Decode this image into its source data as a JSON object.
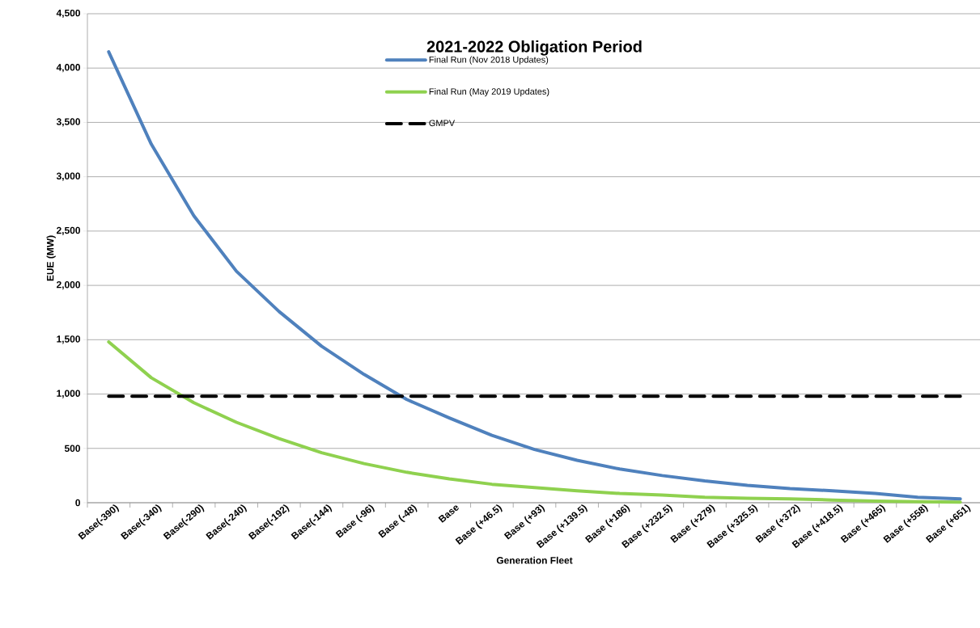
{
  "chart_data": {
    "type": "line",
    "title": "2021-2022 Obligation Period",
    "xlabel": "Generation Fleet",
    "ylabel": "EUE (MW)",
    "categories": [
      "Base(-390)",
      "Base(-340)",
      "Base(-290)",
      "Base(-240)",
      "Base(-192)",
      "Base(-144)",
      "Base (-96)",
      "Base (-48)",
      "Base",
      "Base (+46.5)",
      "Base (+93)",
      "Base (+139.5)",
      "Base (+186)",
      "Base (+232.5)",
      "Base (+279)",
      "Base (+325.5)",
      "Base (+372)",
      "Base (+418.5)",
      "Base (+465)",
      "Base (+558)",
      "Base (+651)"
    ],
    "series": [
      {
        "name": "Final Run (Nov 2018 Updates)",
        "color": "#4f81bd",
        "values": [
          4150,
          3300,
          2640,
          2130,
          1760,
          1440,
          1180,
          950,
          780,
          620,
          490,
          390,
          310,
          250,
          200,
          160,
          130,
          110,
          85,
          50,
          35
        ]
      },
      {
        "name": "Final Run (May 2019 Updates)",
        "color": "#8fd14f",
        "values": [
          1480,
          1150,
          920,
          740,
          590,
          460,
          360,
          280,
          220,
          170,
          140,
          110,
          85,
          70,
          50,
          40,
          35,
          25,
          15,
          10,
          5
        ]
      }
    ],
    "ref_lines": [
      {
        "axis": "y",
        "value": 980,
        "label": "GMPV",
        "color": "#000000",
        "line_style": "dashed"
      }
    ],
    "ylim": [
      0,
      4500
    ],
    "yticks": [
      {
        "value": 0,
        "label": "0"
      },
      {
        "value": 500,
        "label": "500"
      },
      {
        "value": 1000,
        "label": "1,000"
      },
      {
        "value": 1500,
        "label": "1,500"
      },
      {
        "value": 2000,
        "label": "2,000"
      },
      {
        "value": 2500,
        "label": "2,500"
      },
      {
        "value": 3000,
        "label": "3,000"
      },
      {
        "value": 3500,
        "label": "3,500"
      },
      {
        "value": 4000,
        "label": "4,000"
      },
      {
        "value": 4500,
        "label": "4,500"
      }
    ],
    "grid": "y",
    "legend": "top",
    "marker": "none"
  }
}
